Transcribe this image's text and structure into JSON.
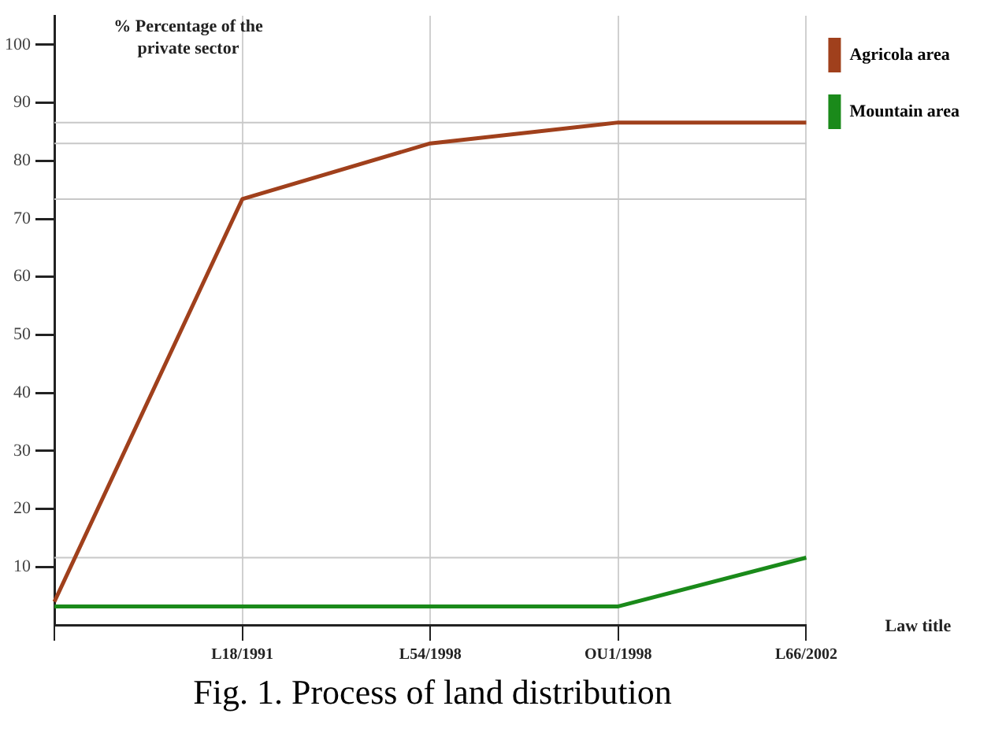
{
  "chart_data": {
    "type": "line",
    "ylabel": "% Percentage of the private sector",
    "xlabel": "Law title",
    "annotations": [
      "Fig. 1. Process of land distribution"
    ],
    "categories": [
      null,
      "L18/1991",
      "L54/1998",
      "OU1/1998",
      "L66/2002"
    ],
    "series": [
      {
        "name": "Agricola area",
        "color": "#a0401c",
        "values": [
          4,
          73.4,
          83,
          86.6,
          86.6
        ]
      },
      {
        "name": "Mountain area",
        "color": "#1a8a1a",
        "values": [
          3.2,
          3.2,
          3.2,
          3.2,
          11.6
        ]
      }
    ],
    "ylim": [
      0,
      105
    ],
    "yticks": [
      10,
      20,
      30,
      40,
      50,
      60,
      70,
      80,
      90,
      100
    ],
    "ref_lines": [
      {
        "axis": "y",
        "value": 73.4,
        "color": "#c8c8c8"
      },
      {
        "axis": "y",
        "value": 83,
        "color": "#c8c8c8"
      },
      {
        "axis": "y",
        "value": 86.6,
        "color": "#c8c8c8"
      },
      {
        "axis": "y",
        "value": 11.6,
        "color": "#c8c8c8"
      }
    ],
    "grid": "x",
    "legend": "top right",
    "marker": "none",
    "line_style": "solid"
  }
}
